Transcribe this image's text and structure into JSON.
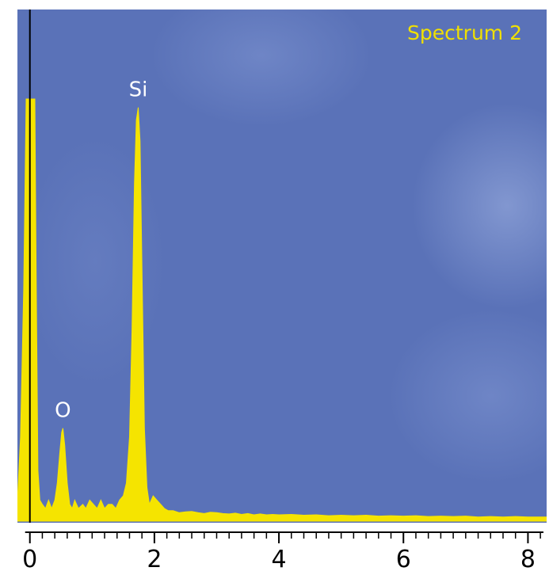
{
  "chart_data": {
    "type": "area",
    "title": "Spectrum 2",
    "xlabel": "",
    "ylabel": "",
    "xlim": [
      -0.2,
      8.3
    ],
    "ylim": [
      0,
      100
    ],
    "x_ticks": [
      0,
      2,
      4,
      6,
      8
    ],
    "x_tick_labels": [
      "0",
      "2",
      "4",
      "6",
      "8"
    ],
    "x_minor_step": 0.2,
    "grid": false,
    "colors": {
      "background": "#5a72b8",
      "spectrum_fill": "#f5e400",
      "peak_labels": "#ffffff",
      "title": "#f0e000",
      "axis": "#000000",
      "baseline_marker": "#000000"
    },
    "peaks": [
      {
        "label": "O",
        "x": 0.53,
        "y": 22
      },
      {
        "label": "Si",
        "x": 1.74,
        "y": 98
      }
    ],
    "series": [
      {
        "x": [
          -0.2,
          -0.15,
          -0.1,
          -0.06,
          -0.03,
          0.0,
          0.02,
          0.05,
          0.08,
          0.1,
          0.13,
          0.16,
          0.2,
          0.25,
          0.3,
          0.35,
          0.4,
          0.44,
          0.48,
          0.51,
          0.53,
          0.56,
          0.6,
          0.64,
          0.68,
          0.72,
          0.78,
          0.85,
          0.9,
          0.96,
          1.02,
          1.08,
          1.14,
          1.2,
          1.26,
          1.32,
          1.38,
          1.44,
          1.5,
          1.55,
          1.6,
          1.64,
          1.68,
          1.71,
          1.74,
          1.77,
          1.8,
          1.84,
          1.88,
          1.92,
          1.98,
          2.04,
          2.1,
          2.16,
          2.22,
          2.3,
          2.4,
          2.5,
          2.6,
          2.7,
          2.8,
          2.9,
          3.0,
          3.1,
          3.2,
          3.3,
          3.4,
          3.5,
          3.6,
          3.7,
          3.8,
          3.9,
          4.0,
          4.2,
          4.4,
          4.6,
          4.8,
          5.0,
          5.2,
          5.4,
          5.6,
          5.8,
          6.0,
          6.2,
          6.4,
          6.6,
          6.8,
          7.0,
          7.2,
          7.4,
          7.6,
          7.8,
          8.0,
          8.2,
          8.3
        ],
        "y": [
          5,
          20,
          55,
          100,
          100,
          100,
          100,
          100,
          100,
          60,
          12,
          5,
          4,
          3,
          5,
          3,
          5,
          9,
          16,
          21,
          22,
          18,
          9,
          4,
          3,
          5,
          3,
          4,
          3,
          5,
          4,
          3,
          5,
          3,
          4,
          4,
          3,
          5,
          6,
          9,
          20,
          45,
          80,
          95,
          98,
          90,
          60,
          22,
          8,
          4,
          6,
          5,
          4,
          3,
          2.5,
          2.5,
          2,
          2.2,
          2.3,
          2,
          1.8,
          2.1,
          2,
          1.8,
          1.7,
          1.9,
          1.6,
          1.8,
          1.5,
          1.7,
          1.5,
          1.6,
          1.5,
          1.6,
          1.4,
          1.5,
          1.3,
          1.4,
          1.3,
          1.4,
          1.2,
          1.3,
          1.2,
          1.3,
          1.1,
          1.2,
          1.1,
          1.2,
          1.0,
          1.1,
          1.0,
          1.1,
          1.0,
          1.0,
          1.0
        ]
      }
    ]
  }
}
